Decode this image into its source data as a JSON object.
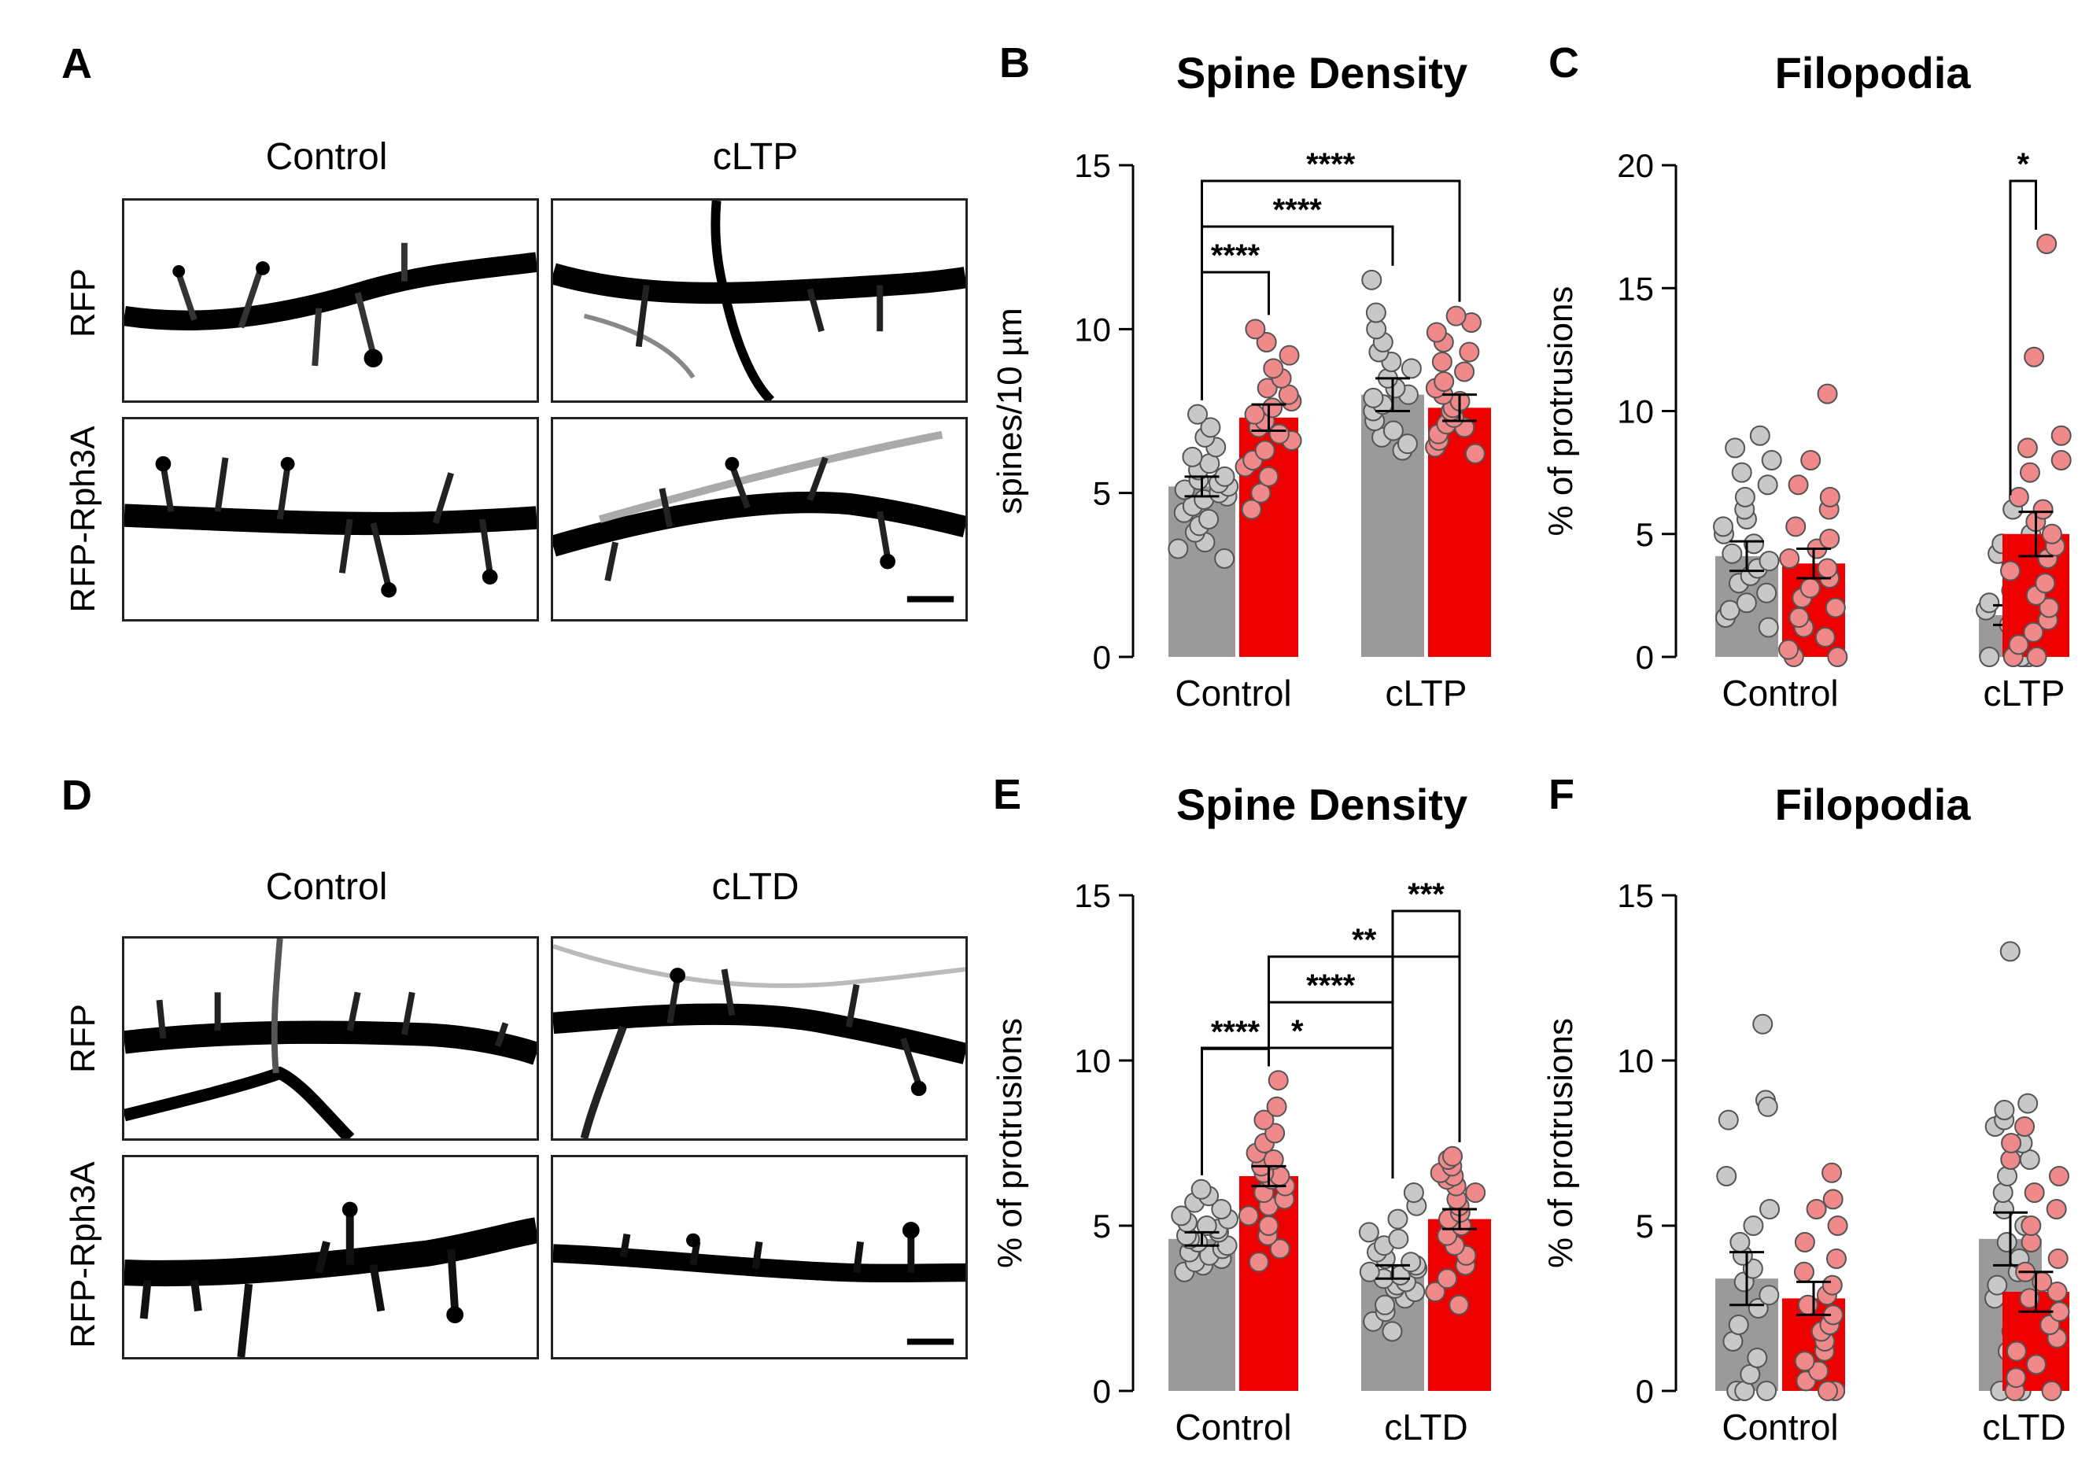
{
  "panels": {
    "A": {
      "label": "A",
      "columns": [
        "Control",
        "cLTP"
      ],
      "rows": [
        "RFP",
        "RFP-Rph3A"
      ]
    },
    "D": {
      "label": "D",
      "columns": [
        "Control",
        "cLTD"
      ],
      "rows": [
        "RFP",
        "RFP-Rph3A"
      ]
    }
  },
  "colors": {
    "rfp_bar": "#9a9a9a",
    "rfp_point": "#c8c8c8",
    "rph3a_bar": "#ee0000",
    "rph3a_point": "#f08a8a",
    "axis": "#000000"
  },
  "chart_data": [
    {
      "id": "B",
      "panel_label": "B",
      "type": "bar",
      "title": "Spine Density",
      "xlabel": "",
      "ylabel": "spines/10 µm",
      "ylim": [
        0,
        15
      ],
      "yticks": [
        0,
        5,
        10,
        15
      ],
      "categories": [
        "Control",
        "cLTP"
      ],
      "series": [
        {
          "name": "RFP",
          "values": [
            5.2,
            8.0
          ],
          "sem": [
            0.3,
            0.5
          ],
          "points": [
            [
              3.0,
              3.3,
              3.5,
              3.8,
              4.0,
              4.2,
              4.4,
              4.6,
              4.8,
              4.9,
              5.0,
              5.1,
              5.2,
              5.3,
              5.4,
              5.5,
              5.7,
              5.9,
              6.1,
              6.4,
              6.7,
              7.0,
              7.4
            ],
            [
              6.3,
              6.5,
              6.7,
              6.9,
              7.2,
              7.5,
              7.7,
              7.9,
              8.0,
              8.2,
              8.5,
              8.8,
              9.0,
              9.3,
              9.6,
              10.0,
              10.5,
              11.5
            ]
          ]
        },
        {
          "name": "RFP-Rph3A",
          "values": [
            7.3,
            7.6
          ],
          "sem": [
            0.4,
            0.4
          ],
          "points": [
            [
              4.5,
              5.0,
              5.5,
              5.8,
              6.0,
              6.3,
              6.6,
              6.8,
              7.0,
              7.2,
              7.4,
              7.6,
              7.8,
              8.0,
              8.2,
              8.5,
              8.8,
              9.2,
              9.6,
              10.0
            ],
            [
              6.2,
              6.4,
              6.6,
              6.8,
              7.0,
              7.1,
              7.3,
              7.5,
              7.6,
              7.8,
              8.0,
              8.2,
              8.4,
              8.7,
              9.0,
              9.3,
              9.6,
              9.9,
              10.2,
              10.4
            ]
          ]
        }
      ],
      "significance": [
        {
          "from": [
            0,
            0
          ],
          "to": [
            0,
            1
          ],
          "label": "****"
        },
        {
          "from": [
            0,
            0
          ],
          "to": [
            1,
            0
          ],
          "label": "****"
        },
        {
          "from": [
            0,
            0
          ],
          "to": [
            1,
            1
          ],
          "label": "****"
        }
      ]
    },
    {
      "id": "C",
      "panel_label": "C",
      "type": "bar",
      "title": "Filopodia",
      "xlabel": "",
      "ylabel": "% of protrusions",
      "ylim": [
        0,
        20
      ],
      "yticks": [
        0,
        5,
        10,
        15,
        20
      ],
      "categories": [
        "Control",
        "cLTP"
      ],
      "series": [
        {
          "name": "RFP",
          "values": [
            4.1,
            1.7
          ],
          "sem": [
            0.6,
            0.4
          ],
          "points": [
            [
              1.2,
              1.6,
              1.9,
              2.2,
              2.6,
              3.0,
              3.3,
              3.6,
              3.9,
              4.2,
              4.6,
              5.0,
              5.3,
              5.6,
              6.0,
              6.5,
              7.0,
              7.5,
              8.0,
              8.5,
              9.0
            ],
            [
              0,
              0,
              0,
              0,
              0.4,
              0.8,
              1.0,
              1.3,
              1.6,
              1.9,
              2.2,
              2.4,
              2.7,
              3.0,
              3.3,
              3.7,
              4.2,
              4.6,
              5.0,
              6.0
            ]
          ]
        },
        {
          "name": "RFP-Rph3A",
          "values": [
            3.8,
            5.0
          ],
          "sem": [
            0.6,
            0.9
          ],
          "points": [
            [
              0,
              0,
              0.3,
              0.8,
              1.2,
              1.6,
              2.0,
              2.4,
              2.8,
              3.2,
              3.6,
              4.0,
              4.4,
              4.8,
              5.3,
              6.0,
              6.5,
              7.0,
              8.0,
              10.7
            ],
            [
              0,
              0,
              0.5,
              1.0,
              1.5,
              2.0,
              2.5,
              3.0,
              3.5,
              4.0,
              4.5,
              5.0,
              5.5,
              6.0,
              6.5,
              7.5,
              8.0,
              8.5,
              9.0,
              12.2,
              16.8
            ]
          ]
        }
      ],
      "significance": [
        {
          "from": [
            1,
            0
          ],
          "to": [
            1,
            1
          ],
          "label": "*"
        }
      ]
    },
    {
      "id": "E",
      "panel_label": "E",
      "type": "bar",
      "title": "Spine Density",
      "xlabel": "",
      "ylabel": "% of protrusions",
      "ylim": [
        0,
        15
      ],
      "yticks": [
        0,
        5,
        10,
        15
      ],
      "categories": [
        "Control",
        "cLTD"
      ],
      "series": [
        {
          "name": "RFP",
          "values": [
            4.6,
            3.6
          ],
          "sem": [
            0.2,
            0.2
          ],
          "points": [
            [
              3.6,
              3.8,
              3.9,
              4.0,
              4.1,
              4.2,
              4.3,
              4.4,
              4.5,
              4.6,
              4.7,
              4.8,
              4.9,
              5.0,
              5.1,
              5.2,
              5.3,
              5.5,
              5.7,
              5.9,
              6.1
            ],
            [
              1.8,
              2.1,
              2.4,
              2.6,
              2.8,
              3.0,
              3.1,
              3.2,
              3.3,
              3.4,
              3.5,
              3.6,
              3.7,
              3.8,
              3.9,
              4.0,
              4.2,
              4.4,
              4.6,
              4.8,
              5.2,
              5.6,
              6.0
            ]
          ]
        },
        {
          "name": "RFP-Rph3A",
          "values": [
            6.5,
            5.2
          ],
          "sem": [
            0.3,
            0.3
          ],
          "points": [
            [
              3.9,
              4.3,
              4.7,
              5.0,
              5.3,
              5.6,
              5.8,
              6.0,
              6.2,
              6.4,
              6.5,
              6.6,
              6.8,
              7.0,
              7.2,
              7.5,
              7.8,
              8.2,
              8.6,
              9.4
            ],
            [
              2.6,
              3.0,
              3.4,
              3.8,
              4.1,
              4.4,
              4.7,
              5.0,
              5.2,
              5.4,
              5.6,
              5.8,
              6.0,
              6.2,
              6.4,
              6.5,
              6.6,
              6.8,
              7.0,
              7.1
            ]
          ]
        }
      ],
      "significance": [
        {
          "from": [
            0,
            0
          ],
          "to": [
            0,
            1
          ],
          "label": "****"
        },
        {
          "from": [
            0,
            0
          ],
          "to": [
            1,
            0
          ],
          "label": "*"
        },
        {
          "from": [
            0,
            1
          ],
          "to": [
            1,
            0
          ],
          "label": "****"
        },
        {
          "from": [
            0,
            1
          ],
          "to": [
            1,
            1
          ],
          "label": "**"
        },
        {
          "from": [
            1,
            0
          ],
          "to": [
            1,
            1
          ],
          "label": "***"
        }
      ]
    },
    {
      "id": "F",
      "panel_label": "F",
      "type": "bar",
      "title": "Filopodia",
      "xlabel": "",
      "ylabel": "% of protrusions",
      "ylim": [
        0,
        15
      ],
      "yticks": [
        0,
        5,
        10,
        15
      ],
      "categories": [
        "Control",
        "cLTD"
      ],
      "series": [
        {
          "name": "RFP",
          "values": [
            3.4,
            4.6
          ],
          "sem": [
            0.8,
            0.8
          ],
          "points": [
            [
              0,
              0,
              0,
              0.5,
              1.0,
              1.5,
              2.0,
              2.5,
              2.9,
              3.3,
              3.7,
              4.1,
              4.5,
              5.0,
              5.5,
              6.5,
              8.2,
              8.8,
              8.6,
              11.1
            ],
            [
              0,
              0,
              0.5,
              1.2,
              1.8,
              2.3,
              2.8,
              3.2,
              3.6,
              4.0,
              4.5,
              5.0,
              5.5,
              6.0,
              6.5,
              7.0,
              7.5,
              8.0,
              8.2,
              8.5,
              8.7,
              13.3
            ]
          ]
        },
        {
          "name": "RFP-Rph3A",
          "values": [
            2.8,
            3.0
          ],
          "sem": [
            0.5,
            0.6
          ],
          "points": [
            [
              0,
              0,
              0.3,
              0.6,
              0.9,
              1.2,
              1.5,
              1.8,
              2.0,
              2.3,
              2.6,
              2.9,
              3.2,
              3.6,
              4.0,
              4.5,
              5.0,
              5.5,
              5.8,
              6.6
            ],
            [
              0,
              0,
              0.4,
              0.8,
              1.2,
              1.6,
              2.0,
              2.4,
              2.8,
              3.0,
              3.3,
              3.6,
              4.0,
              4.5,
              5.0,
              5.5,
              6.0,
              6.5,
              7.0,
              7.5,
              8.0
            ]
          ]
        }
      ],
      "significance": []
    }
  ]
}
